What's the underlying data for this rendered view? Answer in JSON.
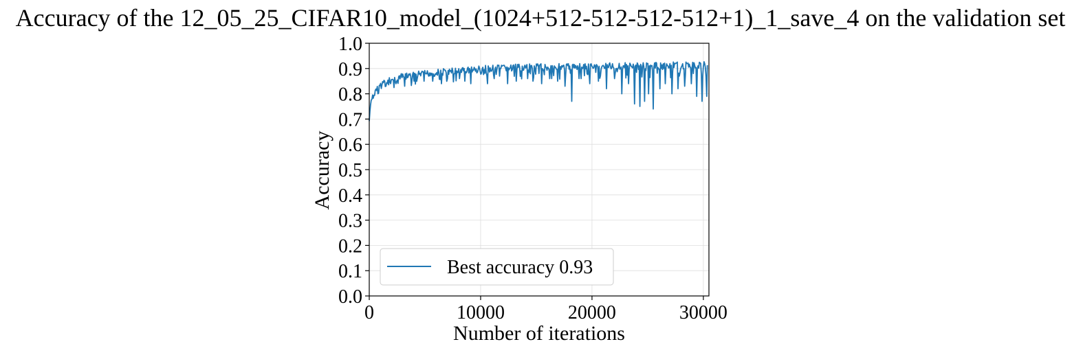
{
  "chart_data": {
    "type": "line",
    "title": "Accuracy of the 12_05_25_CIFAR10_model_(1024+512-512-512-512+1)_1_save_4 on the validation set",
    "xlabel": "Number of iterations",
    "ylabel": "Accuracy",
    "xlim": [
      0,
      30500
    ],
    "ylim": [
      0.0,
      1.0
    ],
    "xticks": [
      0,
      10000,
      20000,
      30000
    ],
    "xtick_labels": [
      "0",
      "10000",
      "20000",
      "30000"
    ],
    "yticks": [
      0.0,
      0.1,
      0.2,
      0.3,
      0.4,
      0.5,
      0.6,
      0.7,
      0.8,
      0.9,
      1.0
    ],
    "ytick_labels": [
      "0.0",
      "0.1",
      "0.2",
      "0.3",
      "0.4",
      "0.5",
      "0.6",
      "0.7",
      "0.8",
      "0.9",
      "1.0"
    ],
    "grid": true,
    "legend_position": "lower-left",
    "series": [
      {
        "name": "Best accuracy 0.93",
        "color": "#1f77b4",
        "x": [
          0,
          50,
          100,
          200,
          300,
          400,
          500,
          700,
          900,
          1100,
          1300,
          1500,
          1800,
          2100,
          2500,
          2900,
          3300,
          3800,
          4300,
          4800,
          5300,
          5800,
          6300,
          6800,
          7300,
          7800,
          8300,
          8800,
          9300,
          9800,
          10300,
          10800,
          11300,
          11800,
          12300,
          12800,
          13300,
          13800,
          14300,
          14800,
          15300,
          15800,
          16300,
          16800,
          17300,
          17800,
          18300,
          18800,
          19300,
          19800,
          20300,
          20800,
          21300,
          21800,
          22300,
          22800,
          23300,
          23800,
          24300,
          24800,
          25300,
          25800,
          26300,
          26800,
          27300,
          27800,
          28300,
          28800,
          29300,
          29800,
          30300
        ],
        "y": [
          0.7,
          0.73,
          0.76,
          0.78,
          0.8,
          0.81,
          0.82,
          0.83,
          0.84,
          0.85,
          0.855,
          0.86,
          0.865,
          0.87,
          0.875,
          0.88,
          0.883,
          0.886,
          0.889,
          0.892,
          0.895,
          0.897,
          0.899,
          0.901,
          0.903,
          0.905,
          0.907,
          0.909,
          0.91,
          0.911,
          0.912,
          0.913,
          0.914,
          0.915,
          0.916,
          0.917,
          0.917,
          0.918,
          0.918,
          0.919,
          0.919,
          0.92,
          0.92,
          0.92,
          0.921,
          0.921,
          0.921,
          0.922,
          0.922,
          0.922,
          0.922,
          0.923,
          0.923,
          0.923,
          0.923,
          0.924,
          0.924,
          0.924,
          0.924,
          0.925,
          0.925,
          0.925,
          0.925,
          0.926,
          0.926,
          0.926,
          0.926,
          0.927,
          0.927,
          0.927,
          0.927
        ],
        "dips": [
          [
            800,
            0.8
          ],
          [
            1500,
            0.83
          ],
          [
            2400,
            0.84
          ],
          [
            3200,
            0.83
          ],
          [
            4000,
            0.85
          ],
          [
            4900,
            0.85
          ],
          [
            5700,
            0.85
          ],
          [
            6500,
            0.84
          ],
          [
            7000,
            0.86
          ],
          [
            8100,
            0.86
          ],
          [
            8600,
            0.85
          ],
          [
            9100,
            0.84
          ],
          [
            10600,
            0.84
          ],
          [
            11200,
            0.86
          ],
          [
            11700,
            0.87
          ],
          [
            12400,
            0.84
          ],
          [
            13200,
            0.85
          ],
          [
            14200,
            0.86
          ],
          [
            14700,
            0.85
          ],
          [
            15500,
            0.84
          ],
          [
            16200,
            0.86
          ],
          [
            16900,
            0.85
          ],
          [
            17600,
            0.83
          ],
          [
            18200,
            0.77
          ],
          [
            19000,
            0.86
          ],
          [
            19800,
            0.84
          ],
          [
            20600,
            0.85
          ],
          [
            21300,
            0.82
          ],
          [
            22000,
            0.86
          ],
          [
            22700,
            0.8
          ],
          [
            23300,
            0.84
          ],
          [
            23800,
            0.76
          ],
          [
            24300,
            0.75
          ],
          [
            24700,
            0.77
          ],
          [
            25100,
            0.8
          ],
          [
            25500,
            0.74
          ],
          [
            26100,
            0.82
          ],
          [
            26600,
            0.84
          ],
          [
            27200,
            0.8
          ],
          [
            27700,
            0.82
          ],
          [
            28300,
            0.83
          ],
          [
            28900,
            0.84
          ],
          [
            29400,
            0.79
          ],
          [
            29900,
            0.77
          ],
          [
            30300,
            0.79
          ]
        ]
      }
    ]
  }
}
